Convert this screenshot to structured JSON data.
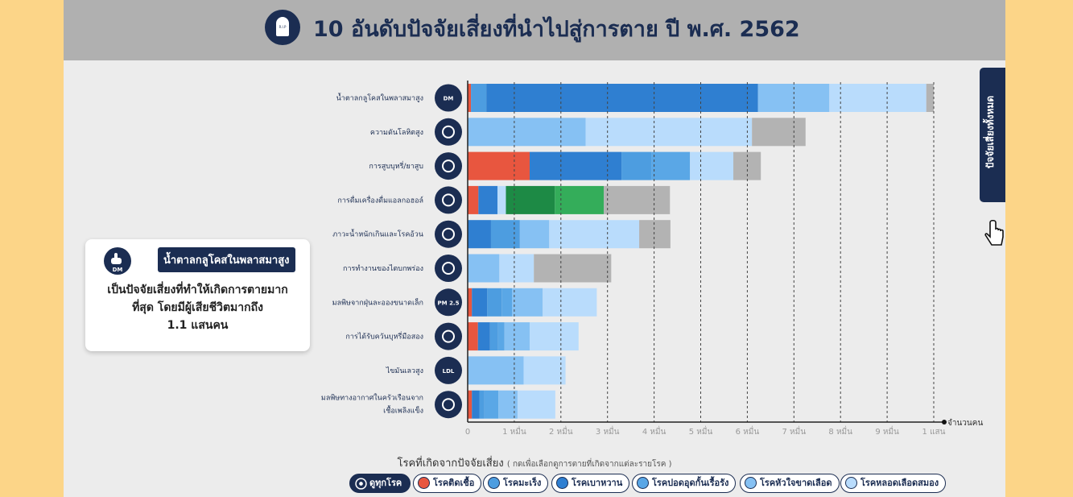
{
  "header": {
    "title": "10 อันดับปัจจัยเสี่ยงที่นำไปสู่การตาย ปี พ.ศ. 2562",
    "icon": "tombstone-icon",
    "icon_text": "R.I.P"
  },
  "side_tab": {
    "label": "ปัจจัยเสี่ยงทั้งหมด"
  },
  "info_card": {
    "badge": "น้ำตาลกลูโคสในพลาสมาสูง",
    "icon_text": "DM",
    "lines": [
      "เป็นปัจจัยเสี่ยงที่ทำให้เกิดการตายมาก",
      "ที่สุด โดยมีผู้เสียชีวิตมากถึง",
      "1.1 แสนคน"
    ]
  },
  "legend": {
    "title": "โรคที่เกิดจากปัจจัยเสี่ยง",
    "subtitle": "( กดเพื่อเลือกดูการตายที่เกิดจากแต่ละรายโรค )",
    "all_label": "ดูทุกโรค",
    "items": [
      {
        "label": "โรคติดเชื้อ",
        "color": "#e8563f"
      },
      {
        "label": "โรคมะเร็ง",
        "color": "#4d9de0"
      },
      {
        "label": "โรคเบาหวาน",
        "color": "#2f7fd1"
      },
      {
        "label": "โรคปอดอุดกั้นเรื้อรัง",
        "color": "#5aa7e6"
      },
      {
        "label": "โรคหัวใจขาดเลือด",
        "color": "#86c1f3"
      },
      {
        "label": "โรคหลอดเลือดสมอง",
        "color": "#b9dcfc"
      }
    ]
  },
  "chart_data": {
    "type": "bar",
    "orientation": "horizontal",
    "stacked": true,
    "x_ticks": [
      "0",
      "1 หมื่น",
      "2 หมื่น",
      "3 หมื่น",
      "4 หมื่น",
      "5 หมื่น",
      "6 หมื่น",
      "7 หมื่น",
      "8 หมื่น",
      "9 หมื่น",
      "1 แสน"
    ],
    "x_tick_values": [
      0,
      10000,
      20000,
      30000,
      40000,
      50000,
      60000,
      70000,
      80000,
      90000,
      100000
    ],
    "xlabel": "จำนวนคน",
    "xlim": [
      0,
      100000
    ],
    "colors": {
      "infectious": "#e8563f",
      "cancer": "#4d9de0",
      "diabetes": "#2f7fd1",
      "copd": "#5aa7e6",
      "ihd": "#86c1f3",
      "stroke": "#b9dcfc",
      "alcohol_dark": "#1d8a45",
      "alcohol_green": "#34ad5a",
      "other": "#b3b3b3"
    },
    "categories": [
      {
        "label": "น้ำตาลกลูโคสในพลาสมาสูง",
        "icon": "DM",
        "segments": [
          {
            "c": "infectious",
            "v": 700
          },
          {
            "c": "cancer",
            "v": 3300
          },
          {
            "c": "diabetes",
            "v": 58300
          },
          {
            "c": "ihd",
            "v": 15300
          },
          {
            "c": "stroke",
            "v": 20800
          },
          {
            "c": "other",
            "v": 1600
          }
        ]
      },
      {
        "label": "ความดันโลหิตสูง",
        "icon": "heart",
        "segments": [
          {
            "c": "ihd",
            "v": 25300
          },
          {
            "c": "stroke",
            "v": 35700
          },
          {
            "c": "other",
            "v": 11500
          }
        ]
      },
      {
        "label": "การสูบบุหรี่/ยาสูบ",
        "icon": "smoking",
        "segments": [
          {
            "c": "infectious",
            "v": 13300
          },
          {
            "c": "diabetes",
            "v": 19700
          },
          {
            "c": "cancer",
            "v": 6500
          },
          {
            "c": "copd",
            "v": 8200
          },
          {
            "c": "stroke",
            "v": 9300
          },
          {
            "c": "other",
            "v": 5900
          }
        ]
      },
      {
        "label": "การดื่มเครื่องดื่มแอลกอฮอล์",
        "icon": "beer",
        "segments": [
          {
            "c": "infectious",
            "v": 2300
          },
          {
            "c": "diabetes",
            "v": 4100
          },
          {
            "c": "stroke",
            "v": 1800
          },
          {
            "c": "alcohol_dark",
            "v": 10500
          },
          {
            "c": "alcohol_green",
            "v": 10500
          },
          {
            "c": "other",
            "v": 14200
          }
        ]
      },
      {
        "label": "ภาวะน้ำหนักเกินและโรคอ้วน",
        "icon": "obesity",
        "segments": [
          {
            "c": "diabetes",
            "v": 5000
          },
          {
            "c": "cancer",
            "v": 6200
          },
          {
            "c": "ihd",
            "v": 6300
          },
          {
            "c": "stroke",
            "v": 19300
          },
          {
            "c": "other",
            "v": 6700
          }
        ]
      },
      {
        "label": "การทำงานของไตบกพร่อง",
        "icon": "kidney",
        "segments": [
          {
            "c": "ihd",
            "v": 6800
          },
          {
            "c": "stroke",
            "v": 7400
          },
          {
            "c": "other",
            "v": 16600
          }
        ]
      },
      {
        "label": "มลพิษจากฝุ่นละอองขนาดเล็ก",
        "icon": "PM 2.5",
        "segments": [
          {
            "c": "infectious",
            "v": 900
          },
          {
            "c": "diabetes",
            "v": 3300
          },
          {
            "c": "cancer",
            "v": 3100
          },
          {
            "c": "copd",
            "v": 2200
          },
          {
            "c": "ihd",
            "v": 6600
          },
          {
            "c": "stroke",
            "v": 11600
          }
        ]
      },
      {
        "label": "การได้รับควันบุหรี่มือสอง",
        "icon": "second-hand-smoke",
        "segments": [
          {
            "c": "infectious",
            "v": 2200
          },
          {
            "c": "diabetes",
            "v": 2600
          },
          {
            "c": "cancer",
            "v": 1700
          },
          {
            "c": "copd",
            "v": 1400
          },
          {
            "c": "ihd",
            "v": 5400
          },
          {
            "c": "stroke",
            "v": 10500
          }
        ]
      },
      {
        "label": "ไขมันเลวสูง",
        "icon": "LDL",
        "segments": [
          {
            "c": "ihd",
            "v": 12000
          },
          {
            "c": "stroke",
            "v": 9000
          }
        ]
      },
      {
        "label": "มลพิษทางอากาศในครัวเรือนจากเชื้อเพลิงแข็ง",
        "icon": "fire",
        "segments": [
          {
            "c": "infectious",
            "v": 900
          },
          {
            "c": "diabetes",
            "v": 1600
          },
          {
            "c": "cancer",
            "v": 1100
          },
          {
            "c": "copd",
            "v": 3000
          },
          {
            "c": "ihd",
            "v": 4100
          },
          {
            "c": "stroke",
            "v": 8100
          }
        ]
      }
    ]
  }
}
